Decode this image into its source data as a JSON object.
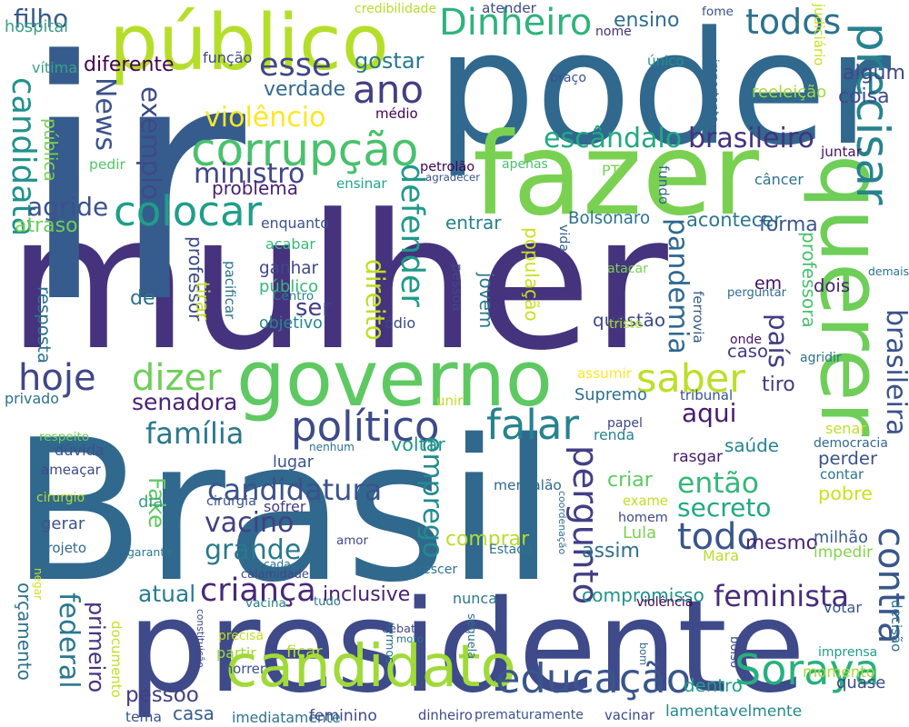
{
  "words": [
    {
      "text": "Brasil",
      "color": "#31688e"
    },
    {
      "text": "mulher",
      "color": "#46337e"
    },
    {
      "text": "poder",
      "color": "#31688e"
    },
    {
      "text": "presidente",
      "color": "#3e4a89"
    },
    {
      "text": "ir",
      "color": "#365c8d"
    },
    {
      "text": "fazer",
      "color": "#7ad151"
    },
    {
      "text": "governo",
      "color": "#5ec962"
    },
    {
      "text": "querer",
      "color": "#6ece58"
    },
    {
      "text": "público",
      "color": "#b5de2b"
    },
    {
      "text": "candidato",
      "color": "#a0da39"
    },
    {
      "text": "corrupção",
      "color": "#4ac16d"
    },
    {
      "text": "colocar",
      "color": "#1f9e89"
    },
    {
      "text": "falar",
      "color": "#26828e"
    },
    {
      "text": "político",
      "color": "#3e4a89"
    },
    {
      "text": "precisar",
      "color": "#26828e"
    },
    {
      "text": "saber",
      "color": "#bddf26"
    },
    {
      "text": "dizer",
      "color": "#6ece58"
    },
    {
      "text": "hoje",
      "color": "#404688"
    },
    {
      "text": "ano",
      "color": "#433e85"
    },
    {
      "text": "esse",
      "color": "#404688"
    },
    {
      "text": "Dinheiro",
      "color": "#2eb37c"
    },
    {
      "text": "todos",
      "color": "#2c728e"
    },
    {
      "text": "educação",
      "color": "#39568c"
    },
    {
      "text": "Soraya",
      "color": "#29af7f"
    },
    {
      "text": "todo",
      "color": "#39568c"
    },
    {
      "text": "então",
      "color": "#35b779"
    },
    {
      "text": "contra",
      "color": "#39568c"
    },
    {
      "text": "brasileira",
      "color": "#3b528b"
    },
    {
      "text": "pergunto",
      "color": "#433e85"
    },
    {
      "text": "federal",
      "color": "#2a788e"
    },
    {
      "text": "primeiro",
      "color": "#463480"
    },
    {
      "text": "criança",
      "color": "#482878"
    },
    {
      "text": "candidatura",
      "color": "#3b528b"
    },
    {
      "text": "vacino",
      "color": "#424086"
    },
    {
      "text": "grande",
      "color": "#2a788e"
    },
    {
      "text": "família",
      "color": "#2a788e"
    },
    {
      "text": "senadora",
      "color": "#482475"
    },
    {
      "text": "feminista",
      "color": "#472d7b"
    },
    {
      "text": "mesmo",
      "color": "#482173"
    },
    {
      "text": "secreto",
      "color": "#22a884"
    },
    {
      "text": "saúde",
      "color": "#26828e"
    },
    {
      "text": "aqui",
      "color": "#481b6d"
    },
    {
      "text": "Fake",
      "color": "#5ec962"
    },
    {
      "text": "defender",
      "color": "#1f9a8a"
    },
    {
      "text": "direito",
      "color": "#bddf26"
    },
    {
      "text": "violêncio",
      "color": "#fde725"
    },
    {
      "text": "escândalo",
      "color": "#22a884"
    },
    {
      "text": "brasileiro",
      "color": "#46327e"
    },
    {
      "text": "ministro",
      "color": "#404688"
    },
    {
      "text": "exemplo",
      "color": "#3e4989"
    },
    {
      "text": "candidata",
      "color": "#21918c"
    },
    {
      "text": "News",
      "color": "#3b528b"
    },
    {
      "text": "filho",
      "color": "#375a8c"
    },
    {
      "text": "gostar",
      "color": "#2a788e"
    },
    {
      "text": "pandemia",
      "color": "#31688e"
    },
    {
      "text": "país",
      "color": "#433e85"
    },
    {
      "text": "ser",
      "color": "#424086"
    },
    {
      "text": "em",
      "color": "#471063"
    },
    {
      "text": "atual",
      "color": "#287c8e"
    },
    {
      "text": "emprego",
      "color": "#238a8d"
    },
    {
      "text": "renda",
      "color": "#25838e"
    },
    {
      "text": "comprar",
      "color": "#b5de2b"
    },
    {
      "text": "compromisso",
      "color": "#20928c"
    },
    {
      "text": "inclusive",
      "color": "#482374"
    },
    {
      "text": "pessoo",
      "color": "#433e85"
    },
    {
      "text": "casa",
      "color": "#365c8d"
    },
    {
      "text": "lamentavelmente",
      "color": "#23888e"
    },
    {
      "text": "dentro",
      "color": "#1fa088"
    },
    {
      "text": "momento",
      "color": "#a8db34"
    },
    {
      "text": "orçamento",
      "color": "#2c728e"
    },
    {
      "text": "documento",
      "color": "#c2df23"
    },
    {
      "text": "população",
      "color": "#c8e020"
    },
    {
      "text": "jovem",
      "color": "#2a788e"
    },
    {
      "text": "questão",
      "color": "#3e4989"
    },
    {
      "text": "ferrovia",
      "color": "#38598c"
    },
    {
      "text": "professora",
      "color": "#4ac16d"
    },
    {
      "text": "Bolsonaro",
      "color": "#2c728e"
    },
    {
      "text": "acontecer",
      "color": "#2a788e"
    },
    {
      "text": "forma",
      "color": "#39568c"
    },
    {
      "text": "entrar",
      "color": "#26828e"
    },
    {
      "text": "agride",
      "color": "#3b528b"
    },
    {
      "text": "problema",
      "color": "#481f70"
    },
    {
      "text": "verdade",
      "color": "#31688e"
    },
    {
      "text": "diferente",
      "color": "#440154"
    },
    {
      "text": "coisa",
      "color": "#3e4a89"
    },
    {
      "text": "algum",
      "color": "#3f4788"
    },
    {
      "text": "ensino",
      "color": "#2e6e8e"
    },
    {
      "text": "tiro",
      "color": "#443b84"
    },
    {
      "text": "Supremo",
      "color": "#2f6c8e"
    },
    {
      "text": "voltar",
      "color": "#1f978b"
    },
    {
      "text": "criar",
      "color": "#5ec962"
    },
    {
      "text": "perder",
      "color": "#3b528b"
    },
    {
      "text": "pobre",
      "color": "#cae11f"
    },
    {
      "text": "assim",
      "color": "#2d708e"
    },
    {
      "text": "Mara",
      "color": "#b5de2b"
    },
    {
      "text": "milhão",
      "color": "#38598c"
    },
    {
      "text": "impedir",
      "color": "#84d44b"
    },
    {
      "text": "caso",
      "color": "#443a83"
    },
    {
      "text": "dois",
      "color": "#482475"
    },
    {
      "text": "acabar",
      "color": "#38b977"
    },
    {
      "text": "ganhar",
      "color": "#3e4989"
    },
    {
      "text": "público",
      "color": "#35b779"
    },
    {
      "text": "objetivo",
      "color": "#24878e"
    },
    {
      "text": "enquanto",
      "color": "#3b528b"
    },
    {
      "text": "resposta",
      "color": "#2c728e"
    },
    {
      "text": "professor",
      "color": "#3e4989"
    },
    {
      "text": "tirar",
      "color": "#c2df23"
    },
    {
      "text": "de",
      "color": "#2d708e"
    },
    {
      "text": "atraso",
      "color": "#6ece58"
    },
    {
      "text": "privado",
      "color": "#2c728e"
    },
    {
      "text": "hospital",
      "color": "#3b9f86"
    },
    {
      "text": "vítima",
      "color": "#39a387"
    },
    {
      "text": "pública",
      "color": "#7ad151"
    },
    {
      "text": "pedir",
      "color": "#52c569"
    },
    {
      "text": "ensinar",
      "color": "#21a685"
    },
    {
      "text": "agradecer",
      "color": "#3b528b"
    },
    {
      "text": "petrolão",
      "color": "#440154"
    },
    {
      "text": "fundo",
      "color": "#31688e"
    },
    {
      "text": "câncer",
      "color": "#2c728e"
    },
    {
      "text": "juntar",
      "color": "#471063"
    },
    {
      "text": "reeleição",
      "color": "#9fda3a"
    },
    {
      "text": "importante",
      "color": "#31688e"
    },
    {
      "text": "único",
      "color": "#21918c"
    },
    {
      "text": "braço",
      "color": "#3b528b"
    },
    {
      "text": "médio",
      "color": "#440154"
    },
    {
      "text": "função",
      "color": "#3f4788"
    },
    {
      "text": "nome",
      "color": "#472d7b"
    },
    {
      "text": "fome",
      "color": "#3b528b"
    },
    {
      "text": "atender",
      "color": "#3e4989"
    },
    {
      "text": "credibilidade",
      "color": "#b5de2b"
    },
    {
      "text": "apenas",
      "color": "#4ac16d"
    },
    {
      "text": "PT",
      "color": "#7ad151"
    },
    {
      "text": "judiciário",
      "color": "#c8e020"
    },
    {
      "text": "vida",
      "color": "#33638d"
    },
    {
      "text": "atacar",
      "color": "#7ad151"
    },
    {
      "text": "triste",
      "color": "#b5de2b"
    },
    {
      "text": "onde",
      "color": "#471365"
    },
    {
      "text": "perguntar",
      "color": "#2f6c8e"
    },
    {
      "text": "demais",
      "color": "#2c728e"
    },
    {
      "text": "agridir",
      "color": "#2c728e"
    },
    {
      "text": "Centro",
      "color": "#26828e"
    },
    {
      "text": "pacificar",
      "color": "#2c728e"
    },
    {
      "text": "ódio",
      "color": "#3e4989"
    },
    {
      "text": "pessoa",
      "color": "#404688"
    },
    {
      "text": "assumir",
      "color": "#fde725"
    },
    {
      "text": "tribunal",
      "color": "#3b528b"
    },
    {
      "text": "unir",
      "color": "#c2df23"
    },
    {
      "text": "papel",
      "color": "#414487"
    },
    {
      "text": "senar",
      "color": "#bddf26"
    },
    {
      "text": "democracia",
      "color": "#31688e"
    },
    {
      "text": "contar",
      "color": "#2c728e"
    },
    {
      "text": "respeito",
      "color": "#6ece58"
    },
    {
      "text": "ameaçar",
      "color": "#3e4a89"
    },
    {
      "text": "dúvida",
      "color": "#3b528b"
    },
    {
      "text": "nenhum",
      "color": "#2c728e"
    },
    {
      "text": "lugar",
      "color": "#3b528b"
    },
    {
      "text": "rasgar",
      "color": "#481a6c"
    },
    {
      "text": "garantir",
      "color": "#2a788e"
    },
    {
      "text": "cirurgio",
      "color": "#b5de2b"
    },
    {
      "text": "cirurgia",
      "color": "#3b528b"
    },
    {
      "text": "sofrer",
      "color": "#433e85"
    },
    {
      "text": "dia",
      "color": "#3b9f86"
    },
    {
      "text": "gerar",
      "color": "#3b528b"
    },
    {
      "text": "projeto",
      "color": "#31688e"
    },
    {
      "text": "mensalão",
      "color": "#31688e"
    },
    {
      "text": "coordenação",
      "color": "#2f6c8e"
    },
    {
      "text": "exame",
      "color": "#c2df23"
    },
    {
      "text": "homem",
      "color": "#3e4989"
    },
    {
      "text": "Lula",
      "color": "#7ad151"
    },
    {
      "text": "Estado",
      "color": "#2c728e"
    },
    {
      "text": "amor",
      "color": "#3e4989"
    },
    {
      "text": "cada",
      "color": "#2c728e"
    },
    {
      "text": "crescer",
      "color": "#2c728e"
    },
    {
      "text": "calamidade",
      "color": "#3e4989"
    },
    {
      "text": "nunca",
      "color": "#2a788e"
    },
    {
      "text": "violência",
      "color": "#440154"
    },
    {
      "text": "votar",
      "color": "#3b528b"
    },
    {
      "text": "decisão",
      "color": "#2c728e"
    },
    {
      "text": "negar",
      "color": "#c8e020"
    },
    {
      "text": "vacina",
      "color": "#26828e"
    },
    {
      "text": "tudo",
      "color": "#2a788e"
    },
    {
      "text": "constituição",
      "color": "#3e4989"
    },
    {
      "text": "termos",
      "color": "#2c728e"
    },
    {
      "text": "debate",
      "color": "#3e4989"
    },
    {
      "text": "moto",
      "color": "#2c728e"
    },
    {
      "text": "sequela",
      "color": "#2c728e"
    },
    {
      "text": "bom",
      "color": "#31688e"
    },
    {
      "text": "bolso",
      "color": "#3e4989"
    },
    {
      "text": "imprensa",
      "color": "#1f9e89"
    },
    {
      "text": "precisa",
      "color": "#c2df23"
    },
    {
      "text": "partir",
      "color": "#9fda3a"
    },
    {
      "text": "ficar",
      "color": "#b5de2b"
    },
    {
      "text": "morrer",
      "color": "#3b528b"
    },
    {
      "text": "quase",
      "color": "#3e4989"
    },
    {
      "text": "tema",
      "color": "#3b528b"
    },
    {
      "text": "imediatamente",
      "color": "#2c728e"
    },
    {
      "text": "feminino",
      "color": "#3e4989"
    },
    {
      "text": "dinheiro",
      "color": "#3e4989"
    },
    {
      "text": "prematuramente",
      "color": "#3b528b"
    },
    {
      "text": "vacinar",
      "color": "#3e4989"
    }
  ]
}
